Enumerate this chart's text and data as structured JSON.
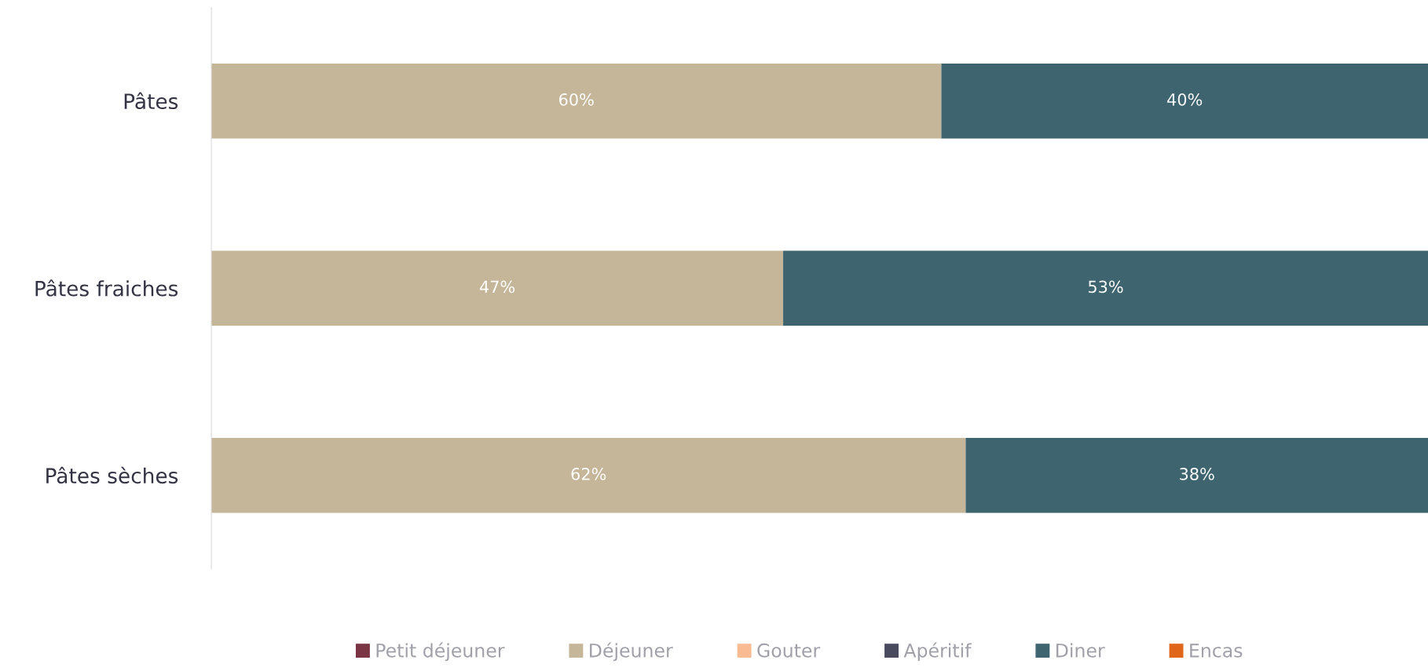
{
  "chart_data": {
    "type": "bar",
    "orientation": "horizontal",
    "stacked": true,
    "legend": "bottom",
    "grid": false,
    "tick_labels": "y",
    "categories": [
      "Pâtes",
      "Pâtes fraiches",
      "Pâtes sèches"
    ],
    "series": [
      {
        "name": "Petit déjeuner",
        "color": "#7b3444",
        "values": [
          null,
          null,
          null
        ]
      },
      {
        "name": "Déjeuner",
        "color": "#c6b699",
        "values": [
          60,
          47,
          62
        ],
        "value_labels": [
          "60%",
          "47%",
          "62%"
        ]
      },
      {
        "name": "Gouter",
        "color": "#f8bb92",
        "values": [
          null,
          null,
          null
        ]
      },
      {
        "name": "Apéritif",
        "color": "#4a4a5e",
        "values": [
          null,
          null,
          null
        ]
      },
      {
        "name": "Diner",
        "color": "#3d646f",
        "values": [
          40,
          53,
          38
        ],
        "value_labels": [
          "40%",
          "53%",
          "38%"
        ]
      },
      {
        "name": "Encas",
        "color": "#e0661a",
        "values": [
          null,
          null,
          null
        ]
      }
    ]
  }
}
